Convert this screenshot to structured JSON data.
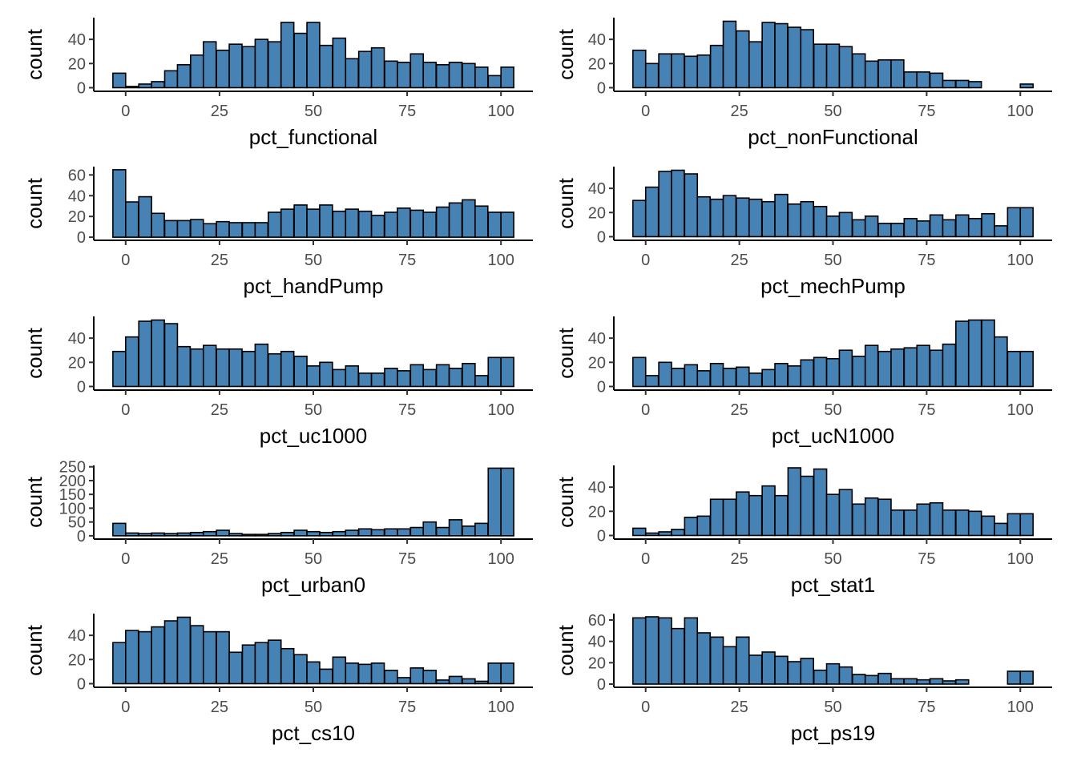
{
  "style": {
    "bar_fill": "#4682B4",
    "bar_stroke": "#000000",
    "background": "#FFFFFF",
    "axis_color": "#000000"
  },
  "chart_data": [
    {
      "type": "bar",
      "xlabel": "pct_functional",
      "ylabel": "count",
      "bin_centers": [
        -1.7,
        1.7,
        5.2,
        8.6,
        12.1,
        15.5,
        19.0,
        22.4,
        25.9,
        29.3,
        32.8,
        36.2,
        39.7,
        43.1,
        46.6,
        50.0,
        53.4,
        56.9,
        60.3,
        63.8,
        67.2,
        70.7,
        74.1,
        77.6,
        81.0,
        84.5,
        87.9,
        91.4,
        94.8,
        98.3,
        101.7
      ],
      "values": [
        12,
        1,
        3,
        5,
        14,
        19,
        27,
        38,
        31,
        36,
        34,
        40,
        38,
        54,
        45,
        54,
        35,
        41,
        24,
        30,
        33,
        22,
        21,
        28,
        21,
        19,
        21,
        20,
        17,
        10,
        17
      ],
      "xticks": [
        0,
        25,
        50,
        75,
        100
      ],
      "yticks": [
        0,
        20,
        40
      ],
      "xlim": [
        -8.5,
        108.5
      ],
      "ylim": [
        -3,
        58
      ]
    },
    {
      "type": "bar",
      "xlabel": "pct_nonFunctional",
      "ylabel": "count",
      "bin_centers": [
        -1.7,
        1.7,
        5.2,
        8.6,
        12.1,
        15.5,
        19.0,
        22.4,
        25.9,
        29.3,
        32.8,
        36.2,
        39.7,
        43.1,
        46.6,
        50.0,
        53.4,
        56.9,
        60.3,
        63.8,
        67.2,
        70.7,
        74.1,
        77.6,
        81.0,
        84.5,
        87.9,
        91.4,
        94.8,
        98.3,
        101.7
      ],
      "values": [
        31,
        20,
        28,
        28,
        26,
        27,
        35,
        55,
        47,
        38,
        54,
        53,
        50,
        48,
        36,
        36,
        34,
        28,
        22,
        23,
        23,
        13,
        13,
        12,
        6,
        6,
        5,
        0,
        0,
        0,
        3
      ],
      "xticks": [
        0,
        25,
        50,
        75,
        100
      ],
      "yticks": [
        0,
        20,
        40
      ],
      "xlim": [
        -8.5,
        108.5
      ],
      "ylim": [
        -3,
        58
      ]
    },
    {
      "type": "bar",
      "xlabel": "pct_handPump",
      "ylabel": "count",
      "bin_centers": [
        -1.7,
        1.7,
        5.2,
        8.6,
        12.1,
        15.5,
        19.0,
        22.4,
        25.9,
        29.3,
        32.8,
        36.2,
        39.7,
        43.1,
        46.6,
        50.0,
        53.4,
        56.9,
        60.3,
        63.8,
        67.2,
        70.7,
        74.1,
        77.6,
        81.0,
        84.5,
        87.9,
        91.4,
        94.8,
        98.3,
        101.7
      ],
      "values": [
        65,
        34,
        39,
        23,
        16,
        16,
        17,
        13,
        15,
        14,
        14,
        14,
        24,
        27,
        31,
        27,
        31,
        25,
        27,
        25,
        21,
        24,
        28,
        26,
        24,
        29,
        33,
        36,
        30,
        24,
        24
      ],
      "xticks": [
        0,
        25,
        50,
        75,
        100
      ],
      "yticks": [
        0,
        20,
        40,
        60
      ],
      "xlim": [
        -8.5,
        108.5
      ],
      "ylim": [
        -3,
        68
      ]
    },
    {
      "type": "bar",
      "xlabel": "pct_mechPump",
      "ylabel": "count",
      "bin_centers": [
        -1.7,
        1.7,
        5.2,
        8.6,
        12.1,
        15.5,
        19.0,
        22.4,
        25.9,
        29.3,
        32.8,
        36.2,
        39.7,
        43.1,
        46.6,
        50.0,
        53.4,
        56.9,
        60.3,
        63.8,
        67.2,
        70.7,
        74.1,
        77.6,
        81.0,
        84.5,
        87.9,
        91.4,
        94.8,
        98.3,
        101.7
      ],
      "values": [
        30,
        41,
        54,
        55,
        52,
        33,
        31,
        34,
        32,
        31,
        29,
        35,
        27,
        29,
        25,
        17,
        20,
        14,
        17,
        11,
        11,
        15,
        13,
        18,
        14,
        18,
        15,
        19,
        9,
        24,
        24
      ],
      "xticks": [
        0,
        25,
        50,
        75,
        100
      ],
      "yticks": [
        0,
        20,
        40
      ],
      "xlim": [
        -8.5,
        108.5
      ],
      "ylim": [
        -3,
        58
      ]
    },
    {
      "type": "bar",
      "xlabel": "pct_uc1000",
      "ylabel": "count",
      "bin_centers": [
        -1.7,
        1.7,
        5.2,
        8.6,
        12.1,
        15.5,
        19.0,
        22.4,
        25.9,
        29.3,
        32.8,
        36.2,
        39.7,
        43.1,
        46.6,
        50.0,
        53.4,
        56.9,
        60.3,
        63.8,
        67.2,
        70.7,
        74.1,
        77.6,
        81.0,
        84.5,
        87.9,
        91.4,
        94.8,
        98.3,
        101.7
      ],
      "values": [
        29,
        41,
        54,
        55,
        52,
        33,
        31,
        34,
        31,
        31,
        29,
        35,
        27,
        29,
        25,
        17,
        20,
        14,
        17,
        11,
        11,
        15,
        13,
        18,
        14,
        18,
        15,
        19,
        9,
        24,
        24
      ],
      "xticks": [
        0,
        25,
        50,
        75,
        100
      ],
      "yticks": [
        0,
        20,
        40
      ],
      "xlim": [
        -8.5,
        108.5
      ],
      "ylim": [
        -3,
        58
      ]
    },
    {
      "type": "bar",
      "xlabel": "pct_ucN1000",
      "ylabel": "count",
      "bin_centers": [
        -1.7,
        1.7,
        5.2,
        8.6,
        12.1,
        15.5,
        19.0,
        22.4,
        25.9,
        29.3,
        32.8,
        36.2,
        39.7,
        43.1,
        46.6,
        50.0,
        53.4,
        56.9,
        60.3,
        63.8,
        67.2,
        70.7,
        74.1,
        77.6,
        81.0,
        84.5,
        87.9,
        91.4,
        94.8,
        98.3,
        101.7
      ],
      "values": [
        24,
        9,
        20,
        15,
        18,
        13,
        19,
        15,
        16,
        11,
        14,
        19,
        17,
        22,
        24,
        23,
        30,
        25,
        34,
        29,
        31,
        32,
        34,
        30,
        35,
        54,
        55,
        55,
        41,
        29,
        29
      ],
      "xticks": [
        0,
        25,
        50,
        75,
        100
      ],
      "yticks": [
        0,
        20,
        40
      ],
      "xlim": [
        -8.5,
        108.5
      ],
      "ylim": [
        -3,
        58
      ]
    },
    {
      "type": "bar",
      "xlabel": "pct_urban0",
      "ylabel": "count",
      "bin_centers": [
        -1.7,
        1.7,
        5.2,
        8.6,
        12.1,
        15.5,
        19.0,
        22.4,
        25.9,
        29.3,
        32.8,
        36.2,
        39.7,
        43.1,
        46.6,
        50.0,
        53.4,
        56.9,
        60.3,
        63.8,
        67.2,
        70.7,
        74.1,
        77.6,
        81.0,
        84.5,
        87.9,
        91.4,
        94.8,
        98.3,
        101.7
      ],
      "values": [
        45,
        10,
        8,
        10,
        8,
        10,
        12,
        15,
        20,
        8,
        5,
        5,
        8,
        12,
        20,
        15,
        12,
        15,
        20,
        25,
        22,
        25,
        25,
        30,
        50,
        30,
        58,
        35,
        45,
        245,
        245
      ],
      "xticks": [
        0,
        25,
        50,
        75,
        100
      ],
      "yticks": [
        0,
        50,
        100,
        150,
        200,
        250
      ],
      "xlim": [
        -8.5,
        108.5
      ],
      "ylim": [
        -12,
        255
      ]
    },
    {
      "type": "bar",
      "xlabel": "pct_stat1",
      "ylabel": "count",
      "bin_centers": [
        -1.7,
        1.7,
        5.2,
        8.6,
        12.1,
        15.5,
        19.0,
        22.4,
        25.9,
        29.3,
        32.8,
        36.2,
        39.7,
        43.1,
        46.6,
        50.0,
        53.4,
        56.9,
        60.3,
        63.8,
        67.2,
        70.7,
        74.1,
        77.6,
        81.0,
        84.5,
        87.9,
        91.4,
        94.8,
        98.3,
        101.7
      ],
      "values": [
        6,
        2,
        3,
        5,
        15,
        16,
        30,
        30,
        36,
        33,
        41,
        33,
        56,
        49,
        55,
        34,
        38,
        26,
        31,
        30,
        21,
        21,
        26,
        27,
        21,
        21,
        20,
        16,
        10,
        18,
        18
      ],
      "xticks": [
        0,
        25,
        50,
        75,
        100
      ],
      "yticks": [
        0,
        20,
        40
      ],
      "xlim": [
        -8.5,
        108.5
      ],
      "ylim": [
        -3,
        58
      ]
    },
    {
      "type": "bar",
      "xlabel": "pct_cs10",
      "ylabel": "count",
      "bin_centers": [
        -1.7,
        1.7,
        5.2,
        8.6,
        12.1,
        15.5,
        19.0,
        22.4,
        25.9,
        29.3,
        32.8,
        36.2,
        39.7,
        43.1,
        46.6,
        50.0,
        53.4,
        56.9,
        60.3,
        63.8,
        67.2,
        70.7,
        74.1,
        77.6,
        81.0,
        84.5,
        87.9,
        91.4,
        94.8,
        98.3,
        101.7
      ],
      "values": [
        34,
        44,
        43,
        47,
        52,
        55,
        48,
        43,
        43,
        26,
        32,
        34,
        36,
        29,
        24,
        18,
        12,
        22,
        17,
        16,
        17,
        11,
        5,
        13,
        11,
        3,
        6,
        4,
        2,
        17,
        17
      ],
      "xticks": [
        0,
        25,
        50,
        75,
        100
      ],
      "yticks": [
        0,
        20,
        40
      ],
      "xlim": [
        -8.5,
        108.5
      ],
      "ylim": [
        -3,
        58
      ]
    },
    {
      "type": "bar",
      "xlabel": "pct_ps19",
      "ylabel": "count",
      "bin_centers": [
        -1.7,
        1.7,
        5.2,
        8.6,
        12.1,
        15.5,
        19.0,
        22.4,
        25.9,
        29.3,
        32.8,
        36.2,
        39.7,
        43.1,
        46.6,
        50.0,
        53.4,
        56.9,
        60.3,
        63.8,
        67.2,
        70.7,
        74.1,
        77.6,
        81.0,
        84.5,
        87.9,
        91.4,
        94.8,
        98.3,
        101.7
      ],
      "values": [
        62,
        63,
        62,
        52,
        62,
        48,
        44,
        35,
        44,
        27,
        30,
        26,
        21,
        24,
        13,
        19,
        16,
        9,
        8,
        10,
        5,
        5,
        4,
        5,
        3,
        4,
        0,
        0,
        0,
        12,
        12
      ],
      "xticks": [
        0,
        25,
        50,
        75,
        100
      ],
      "yticks": [
        0,
        20,
        40,
        60
      ],
      "xlim": [
        -8.5,
        108.5
      ],
      "ylim": [
        -3,
        66
      ]
    }
  ]
}
